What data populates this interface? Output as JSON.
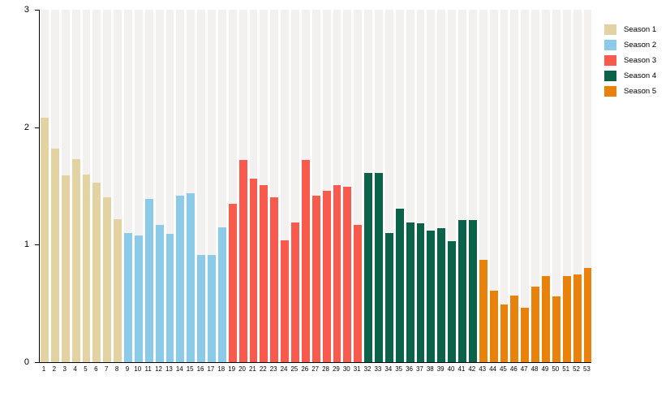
{
  "chart_data": {
    "type": "bar",
    "title": "",
    "xlabel": "",
    "ylabel": "",
    "ylim": [
      0,
      3
    ],
    "yticks": [
      3,
      2,
      1,
      0
    ],
    "grid": "vertical background stripes, one per bar slot",
    "legend_position": "top-right outside plot",
    "stripe_color": "#F2F1EF",
    "axis_color": "#000000",
    "categories": [
      "1",
      "2",
      "3",
      "4",
      "5",
      "6",
      "7",
      "8",
      "9",
      "10",
      "11",
      "12",
      "13",
      "14",
      "15",
      "16",
      "17",
      "18",
      "19",
      "20",
      "21",
      "22",
      "23",
      "24",
      "25",
      "26",
      "27",
      "28",
      "29",
      "30",
      "31",
      "32",
      "33",
      "34",
      "35",
      "36",
      "37",
      "38",
      "39",
      "40",
      "41",
      "42",
      "43",
      "44",
      "45",
      "46",
      "47",
      "48",
      "49",
      "50",
      "51",
      "52",
      "53"
    ],
    "series": [
      {
        "name": "Season 1",
        "color": "#E3D3A2",
        "episodes": [
          "1",
          "2",
          "3",
          "4",
          "5",
          "6",
          "7",
          "8"
        ],
        "values": [
          2.08,
          1.82,
          1.59,
          1.73,
          1.6,
          1.53,
          1.4,
          1.22
        ]
      },
      {
        "name": "Season 2",
        "color": "#8CCBE8",
        "episodes": [
          "9",
          "10",
          "11",
          "12",
          "13",
          "14",
          "15",
          "16",
          "17",
          "18"
        ],
        "values": [
          1.1,
          1.08,
          1.39,
          1.17,
          1.09,
          1.42,
          1.44,
          0.91,
          0.91,
          1.15
        ]
      },
      {
        "name": "Season 3",
        "color": "#F85B4D",
        "episodes": [
          "19",
          "20",
          "21",
          "22",
          "23",
          "24",
          "25",
          "26",
          "27",
          "28",
          "29",
          "30",
          "31"
        ],
        "values": [
          1.35,
          1.72,
          1.56,
          1.51,
          1.4,
          1.04,
          1.19,
          1.72,
          1.42,
          1.46,
          1.51,
          1.49,
          1.17
        ]
      },
      {
        "name": "Season 4",
        "color": "#0A6349",
        "episodes": [
          "32",
          "33",
          "34",
          "35",
          "36",
          "37",
          "38",
          "39",
          "40",
          "41",
          "42"
        ],
        "values": [
          1.61,
          1.61,
          1.1,
          1.31,
          1.19,
          1.18,
          1.12,
          1.14,
          1.03,
          1.21,
          1.21
        ]
      },
      {
        "name": "Season 5",
        "color": "#E8820B",
        "episodes": [
          "43",
          "44",
          "45",
          "46",
          "47",
          "48",
          "49",
          "50",
          "51",
          "52",
          "53"
        ],
        "values": [
          0.87,
          0.61,
          0.49,
          0.57,
          0.46,
          0.64,
          0.73,
          0.56,
          0.73,
          0.75,
          0.8
        ]
      }
    ]
  }
}
